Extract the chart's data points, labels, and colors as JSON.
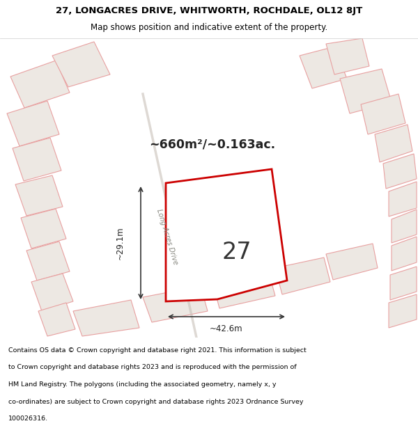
{
  "title_line1": "27, LONGACRES DRIVE, WHITWORTH, ROCHDALE, OL12 8JT",
  "title_line2": "Map shows position and indicative extent of the property.",
  "footer_lines": [
    "Contains OS data © Crown copyright and database right 2021. This information is subject",
    "to Crown copyright and database rights 2023 and is reproduced with the permission of",
    "HM Land Registry. The polygons (including the associated geometry, namely x, y",
    "co-ordinates) are subject to Crown copyright and database rights 2023 Ordnance Survey",
    "100026316."
  ],
  "area_text": "~660m²/~0.163ac.",
  "dim_h": "~42.6m",
  "dim_v": "~29.1m",
  "road_label": "Long Acres Drive",
  "plot_number": "27",
  "map_bg": "#f0ede8",
  "plot_color": "#cc0000",
  "other_plot_line": "#e8a0a0",
  "other_plot_fill": "#ede8e3",
  "header_bg": "#ffffff",
  "footer_bg": "#ffffff"
}
